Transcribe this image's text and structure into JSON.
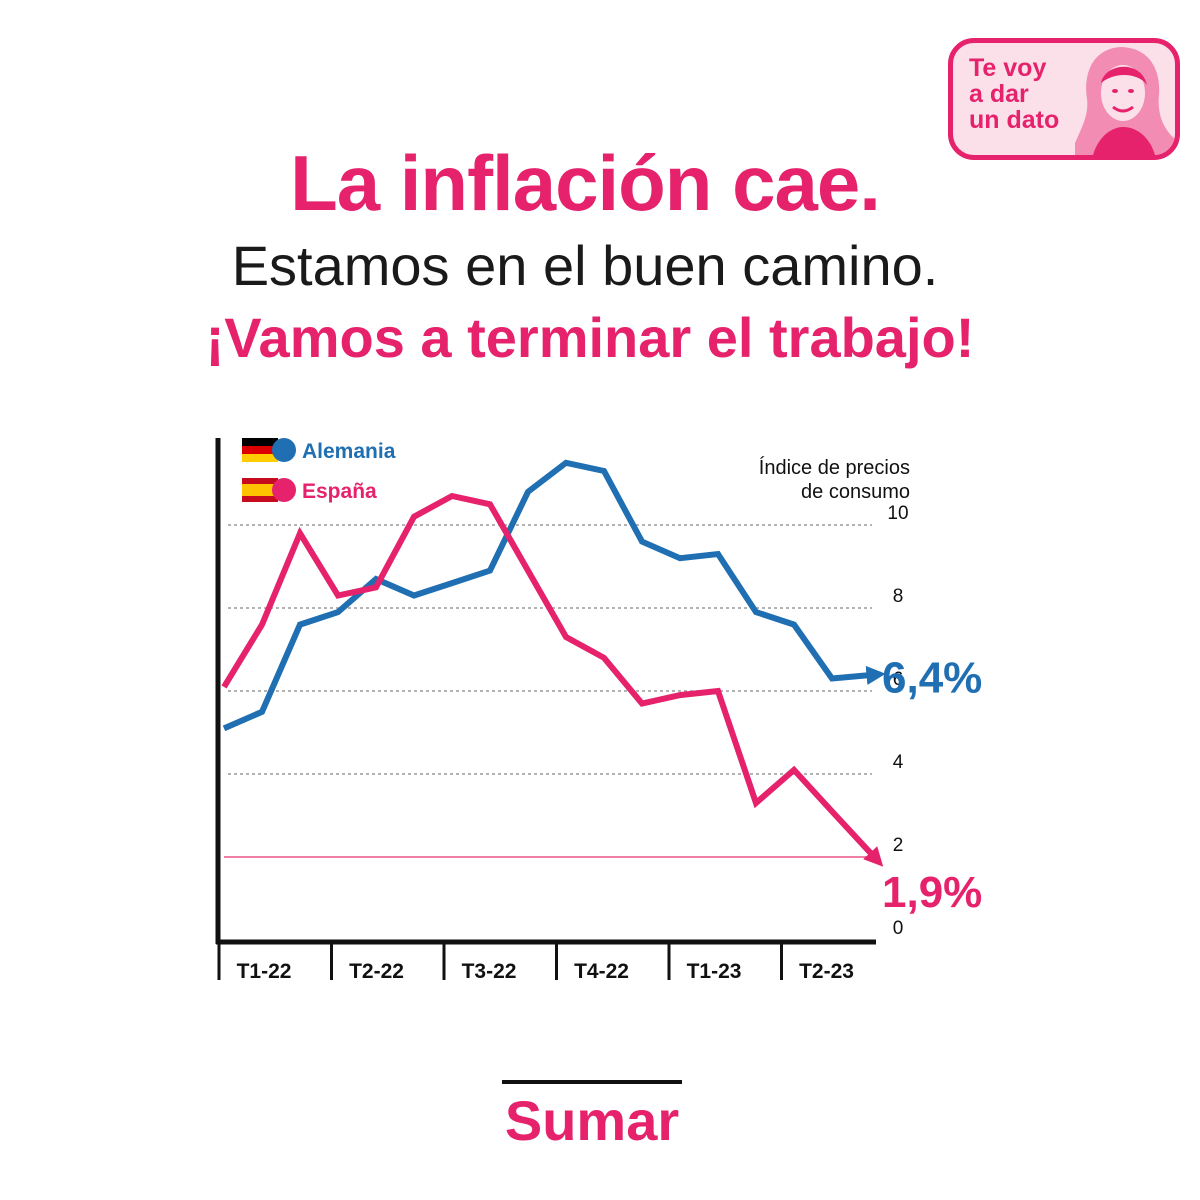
{
  "badge": {
    "lines": [
      "Te voy",
      "a dar",
      "un dato"
    ]
  },
  "header": {
    "title": "La inflación cae.",
    "subtitle": "Estamos en el buen camino.",
    "call_to_action": "¡Vamos a terminar el trabajo!"
  },
  "colors": {
    "accent": "#e5226b",
    "germany": "#1f6fb2",
    "spain": "#e5226b",
    "grid": "#9a9a9a",
    "axis": "#111111"
  },
  "chart_data": {
    "type": "line",
    "ylabel": "Índice de precios\nde consumo",
    "ylim": [
      0,
      11
    ],
    "yticks": [
      0,
      2,
      4,
      6,
      8,
      10
    ],
    "grid": true,
    "reference_line": {
      "y": 2,
      "color": "#f07fa8"
    },
    "quarters": [
      "T1-22",
      "T2-22",
      "T3-22",
      "T4-22",
      "T1-23",
      "T2-23"
    ],
    "legend_position": "top-left",
    "x": [
      0,
      1,
      2,
      3,
      4,
      5,
      6,
      7,
      8,
      9,
      10,
      11,
      12,
      13,
      14,
      15,
      16,
      17
    ],
    "series": [
      {
        "name": "Alemania",
        "flag": "germany",
        "values": [
          5.1,
          5.5,
          7.6,
          7.9,
          8.7,
          8.3,
          8.6,
          8.9,
          10.8,
          11.5,
          11.3,
          9.6,
          9.2,
          9.3,
          7.9,
          7.6,
          6.3,
          6.4
        ],
        "end_label": "6,4%"
      },
      {
        "name": "España",
        "flag": "spain",
        "values": [
          6.1,
          7.6,
          9.8,
          8.3,
          8.5,
          10.2,
          10.7,
          10.5,
          8.9,
          7.3,
          6.8,
          5.7,
          5.9,
          6.0,
          3.3,
          4.1,
          3.1,
          1.9
        ],
        "end_label": "1,9%"
      }
    ]
  },
  "footer": {
    "logo": "Sumar"
  }
}
